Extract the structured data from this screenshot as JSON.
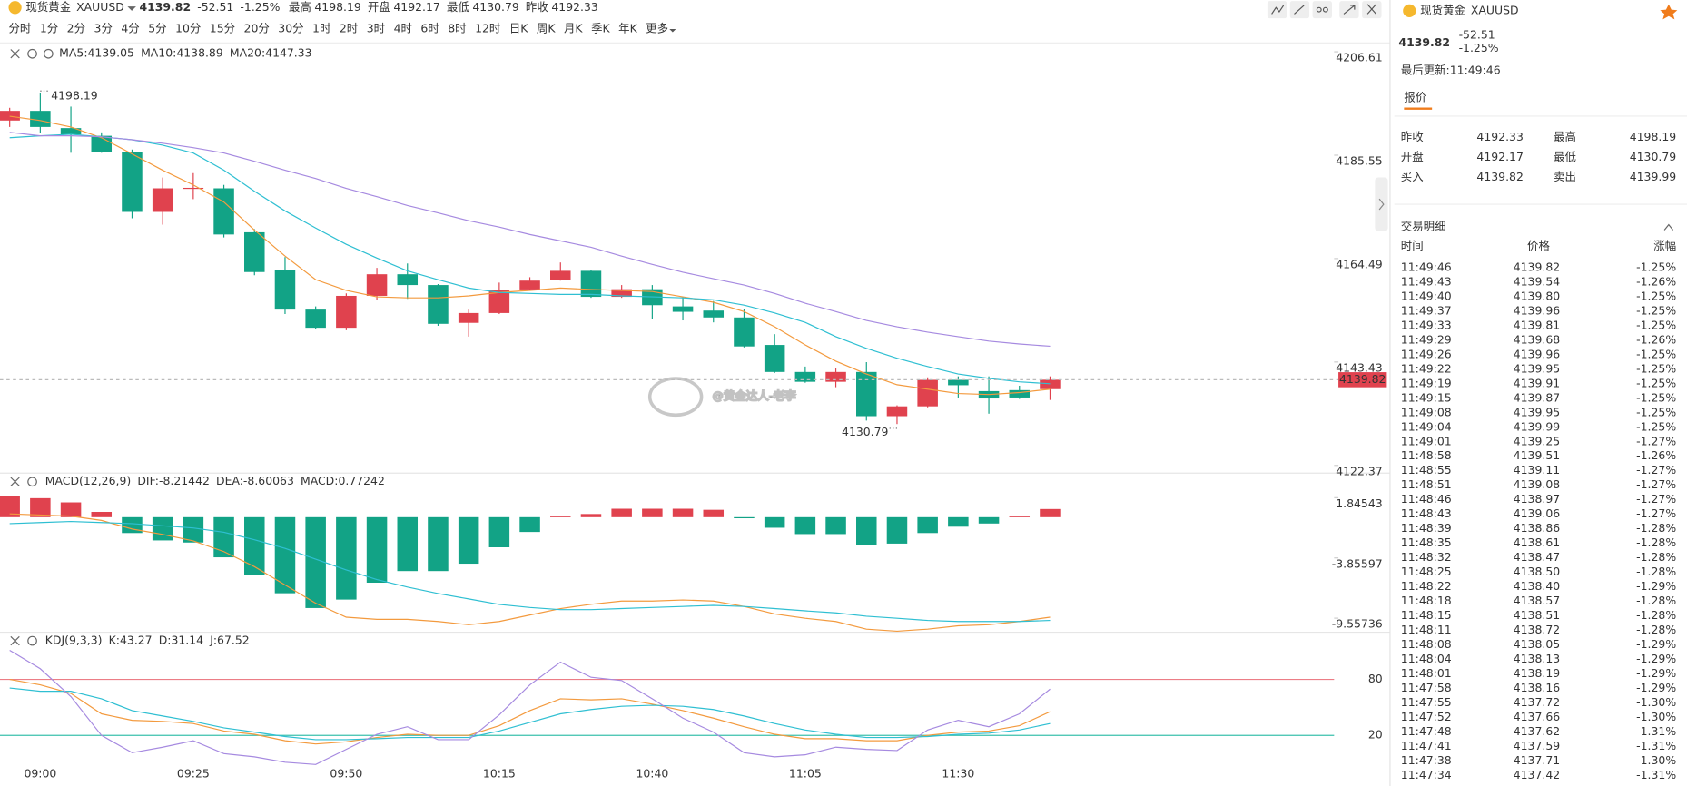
{
  "header": {
    "name": "现货黄金",
    "symbol": "XAUUSD",
    "price": "4139.82",
    "change": "-52.51",
    "change_pct": "-1.25%",
    "color": "#12a386",
    "stats": [
      {
        "label": "最高",
        "value": "4198.19",
        "color": "#e0424e"
      },
      {
        "label": "开盘",
        "value": "4192.17",
        "color": "#12a386"
      },
      {
        "label": "最低",
        "value": "4130.79",
        "color": "#12a386"
      },
      {
        "label": "昨收",
        "value": "4192.33",
        "color": "#666666"
      }
    ]
  },
  "toolbar": {
    "periods": [
      "分时",
      "1分",
      "2分",
      "3分",
      "4分",
      "5分",
      "10分",
      "15分",
      "20分",
      "30分",
      "1时",
      "2时",
      "3时",
      "4时",
      "6时",
      "8时",
      "12时",
      "日K",
      "周K",
      "月K",
      "季K",
      "年K",
      "更多"
    ],
    "active": "5分"
  },
  "watermark": "@黄金达人-老李",
  "chart_data": [
    {
      "type": "candlestick",
      "categories": [
        null,
        "09:00",
        null,
        null,
        null,
        null,
        "09:25",
        null,
        null,
        null,
        null,
        "09:50",
        null,
        null,
        null,
        null,
        "10:15",
        null,
        null,
        null,
        null,
        "10:40",
        null,
        null,
        null,
        null,
        "11:05",
        null,
        null,
        null,
        null,
        "11:30",
        null,
        null,
        null
      ],
      "open": [
        4192.61,
        4194.58,
        4191.07,
        4189.5,
        4186.26,
        4174.0,
        4178.8,
        4178.8,
        4169.85,
        4162.2,
        4154.1,
        4150.4,
        4156.9,
        4161.3,
        4159.1,
        4151.4,
        4153.4,
        4158.2,
        4160.2,
        4162.0,
        4156.7,
        4158.25,
        4154.75,
        4153.9,
        4152.5,
        4146.9,
        4141.4,
        4139.4,
        4141.4,
        4132.4,
        4134.4,
        4139.8,
        4137.5,
        4137.7,
        4137.9
      ],
      "high": [
        4195.2,
        4198.19,
        4195.45,
        4190.2,
        4186.7,
        4181.0,
        4181.9,
        4179.5,
        4170.5,
        4164.8,
        4154.75,
        4157.4,
        4162.6,
        4163.5,
        4159.3,
        4154.1,
        4159.6,
        4160.7,
        4163.7,
        4162.2,
        4159.1,
        4159.1,
        4156.7,
        4155.85,
        4154.3,
        4149.1,
        4142.5,
        4142.1,
        4143.4,
        4134.6,
        4140.3,
        4140.5,
        4140.5,
        4138.6,
        4140.5
      ],
      "low": [
        4191.3,
        4190.0,
        4186.04,
        4186.04,
        4172.7,
        4171.4,
        4176.6,
        4168.8,
        4161.1,
        4153.2,
        4150.15,
        4149.9,
        4156.0,
        4156.3,
        4150.8,
        4148.6,
        4153.2,
        4158.0,
        4160.0,
        4156.5,
        4156.5,
        4152.1,
        4151.9,
        4151.5,
        4146.4,
        4141.2,
        4139.2,
        4138.3,
        4131.5,
        4130.79,
        4134.2,
        4136.2,
        4132.9,
        4135.9,
        4135.7
      ],
      "close": [
        4194.58,
        4191.3,
        4189.76,
        4186.26,
        4174.0,
        4178.8,
        4178.9,
        4169.4,
        4161.75,
        4154.1,
        4150.4,
        4156.9,
        4161.3,
        4159.1,
        4151.2,
        4153.4,
        4158.0,
        4160.0,
        4162.0,
        4156.7,
        4158.25,
        4155.0,
        4153.65,
        4152.5,
        4146.6,
        4141.4,
        4139.4,
        4141.4,
        4132.4,
        4134.4,
        4139.8,
        4138.7,
        4136.0,
        4136.2,
        4139.82
      ],
      "up_color": "#e0424e",
      "down_color": "#12a386",
      "series": [
        {
          "name": "MA5:4139.05",
          "color": "#f39a3e",
          "values": [
            4193.48,
            4192.6,
            4191.3,
            4189.1,
            4185.8,
            4182.5,
            4179.5,
            4176.0,
            4170.3,
            4165.0,
            4160.2,
            4158.0,
            4156.7,
            4156.5,
            4156.5,
            4156.9,
            4157.6,
            4158.0,
            4158.5,
            4158.2,
            4158.0,
            4157.8,
            4156.7,
            4155.6,
            4153.7,
            4150.6,
            4146.9,
            4143.6,
            4141.0,
            4138.8,
            4137.9,
            4137.0,
            4136.8,
            4137.2,
            4137.9
          ]
        },
        {
          "name": "MA10:4138.89",
          "color": "#2fbfd2",
          "values": [
            4189.1,
            4189.5,
            4189.8,
            4189.3,
            4188.7,
            4187.6,
            4186.0,
            4182.5,
            4178.2,
            4174.2,
            4170.7,
            4167.4,
            4164.6,
            4162.0,
            4160.2,
            4158.5,
            4157.6,
            4157.4,
            4157.2,
            4157.2,
            4156.9,
            4156.7,
            4156.5,
            4156.1,
            4155.0,
            4153.4,
            4151.5,
            4148.6,
            4146.2,
            4144.2,
            4142.5,
            4141.0,
            4140.1,
            4139.4,
            4139.0
          ]
        },
        {
          "name": "MA20:4147.33",
          "color": "#a68ae0",
          "values": [
            4190.2,
            4189.5,
            4189.5,
            4189.3,
            4188.7,
            4188.0,
            4187.1,
            4186.0,
            4184.3,
            4182.5,
            4180.8,
            4178.8,
            4177.1,
            4175.3,
            4173.8,
            4172.2,
            4170.9,
            4169.4,
            4168.1,
            4166.8,
            4165.0,
            4163.3,
            4161.7,
            4160.4,
            4159.1,
            4157.4,
            4155.4,
            4153.7,
            4151.9,
            4150.6,
            4149.5,
            4148.6,
            4147.7,
            4147.1,
            4146.65
          ]
        }
      ],
      "annotations": [
        "4198.19",
        "4130.79"
      ],
      "last_price": {
        "value": 4139.82,
        "label": "4139.82"
      },
      "last_color": "#e0424e",
      "ylim": [
        4120.8,
        4208.4
      ],
      "yticks": [
        4206.61,
        4185.55,
        4164.49,
        4143.43,
        4122.37
      ]
    },
    {
      "type": "macd",
      "title": "MACD(12,26,9)",
      "up_color": "#e0424e",
      "down_color": "#12a386",
      "series": [
        {
          "name": "DIF:-8.21442",
          "color": "#f39a3e",
          "values": [
            0.31,
            0.2,
            0.1,
            -0.31,
            -1.12,
            -1.63,
            -2.24,
            -3.26,
            -4.68,
            -6.41,
            -8.14,
            -9.47,
            -9.67,
            -9.67,
            -9.87,
            -10.18,
            -9.87,
            -9.26,
            -8.65,
            -8.24,
            -7.94,
            -7.94,
            -7.84,
            -7.94,
            -8.45,
            -9.16,
            -9.57,
            -9.87,
            -10.59,
            -10.79,
            -10.59,
            -10.28,
            -10.18,
            -9.87,
            -9.47
          ]
        },
        {
          "name": "DEA:-8.60063",
          "color": "#2fbfd2",
          "values": [
            -0.61,
            -0.51,
            -0.41,
            -0.51,
            -0.61,
            -0.81,
            -1.02,
            -1.43,
            -2.14,
            -2.95,
            -3.97,
            -4.99,
            -5.9,
            -6.62,
            -7.23,
            -7.74,
            -8.25,
            -8.55,
            -8.75,
            -8.75,
            -8.65,
            -8.55,
            -8.45,
            -8.35,
            -8.45,
            -8.65,
            -8.86,
            -9.06,
            -9.37,
            -9.57,
            -9.77,
            -9.87,
            -9.87,
            -9.87,
            -9.77
          ]
        },
        {
          "name": "MACD:0.77242",
          "color": "#a68ae0",
          "values": [
            2.0,
            1.8,
            1.4,
            0.5,
            -1.5,
            -2.2,
            -2.4,
            -3.8,
            -5.5,
            -7.2,
            -8.6,
            -7.8,
            -6.2,
            -5.1,
            -5.1,
            -4.4,
            -2.85,
            -1.4,
            0.1,
            0.3,
            0.8,
            0.8,
            0.8,
            0.7,
            -0.1,
            -1.0,
            -1.6,
            -1.6,
            -2.6,
            -2.5,
            -1.5,
            -0.9,
            -0.6,
            0.1,
            0.77242
          ]
        }
      ],
      "ylim": [
        -10.89,
        2.34
      ],
      "yticks": [
        1.84543,
        -3.85597,
        -9.55736
      ]
    },
    {
      "type": "line",
      "title": "KDJ(9,3,3)",
      "series": [
        {
          "name": "K:43.27",
          "color": "#f39a3e",
          "values": [
            80,
            74.2,
            65,
            43.1,
            36.2,
            35,
            32.7,
            24.6,
            21.2,
            14.2,
            10.8,
            13.1,
            17.7,
            21.2,
            20,
            20,
            30.4,
            46.5,
            59.2,
            58.1,
            59.2,
            53.5,
            46.5,
            38.5,
            29.2,
            21.2,
            16.5,
            16.5,
            14.2,
            14.2,
            20,
            23.5,
            24.6,
            30.4,
            45.4
          ]
        },
        {
          "name": "D:31.14",
          "color": "#2fbfd2",
          "values": [
            70.8,
            67.3,
            67.3,
            59.2,
            46.5,
            40.8,
            35,
            28.1,
            23.5,
            18.8,
            15.4,
            15.4,
            16.5,
            17.7,
            17.7,
            17.7,
            24.6,
            33.8,
            43.1,
            47.7,
            51.2,
            52.3,
            51.2,
            47.7,
            40.8,
            32.7,
            25.8,
            21.2,
            17.7,
            17.7,
            18.8,
            21.2,
            22.3,
            25.8,
            32.7
          ]
        },
        {
          "name": "J:67.52",
          "color": "#a68ae0",
          "values": [
            111.2,
            91.5,
            61.5,
            20,
            1.5,
            7.3,
            14.2,
            0.4,
            -3.1,
            -8.8,
            -11.2,
            5,
            21.2,
            29.2,
            15.4,
            15.4,
            41.9,
            74.2,
            98.5,
            82.3,
            78.8,
            59.2,
            38.5,
            23.5,
            1.5,
            -3.1,
            -0.8,
            7.3,
            5,
            3.8,
            25.8,
            36.2,
            29.2,
            43.1,
            69.6
          ]
        }
      ],
      "ylim": [
        -17,
        126
      ],
      "yticks": [
        80,
        20
      ],
      "tick_line_colors": [
        "#ec7d86",
        "#3cc0ad"
      ]
    }
  ],
  "side": {
    "name": "现货黄金",
    "symbol": "XAUUSD",
    "price": "4139.82",
    "change": "-52.51",
    "change_pct": "-1.25%",
    "color": "#12a386",
    "updated": "最后更新:11:49:46",
    "tab": "报价",
    "quotes": [
      {
        "label": "昨收",
        "value": "4192.33",
        "color": "#333333"
      },
      {
        "label": "最高",
        "value": "4198.19",
        "color": "#e0424e"
      },
      {
        "label": "开盘",
        "value": "4192.17",
        "color": "#12a386"
      },
      {
        "label": "最低",
        "value": "4130.79",
        "color": "#12a386"
      },
      {
        "label": "买入",
        "value": "4139.82",
        "color": "#333333"
      },
      {
        "label": "卖出",
        "value": "4139.99",
        "color": "#333333"
      }
    ],
    "trades_title": "交易明细",
    "columns": [
      "时间",
      "价格",
      "涨幅"
    ],
    "trades": [
      [
        "11:49:46",
        "4139.82",
        "-1.25%"
      ],
      [
        "11:49:43",
        "4139.54",
        "-1.26%"
      ],
      [
        "11:49:40",
        "4139.80",
        "-1.25%"
      ],
      [
        "11:49:37",
        "4139.96",
        "-1.25%"
      ],
      [
        "11:49:33",
        "4139.81",
        "-1.25%"
      ],
      [
        "11:49:29",
        "4139.68",
        "-1.26%"
      ],
      [
        "11:49:26",
        "4139.96",
        "-1.25%"
      ],
      [
        "11:49:22",
        "4139.95",
        "-1.25%"
      ],
      [
        "11:49:19",
        "4139.91",
        "-1.25%"
      ],
      [
        "11:49:15",
        "4139.87",
        "-1.25%"
      ],
      [
        "11:49:08",
        "4139.95",
        "-1.25%"
      ],
      [
        "11:49:04",
        "4139.99",
        "-1.25%"
      ],
      [
        "11:49:01",
        "4139.25",
        "-1.27%"
      ],
      [
        "11:48:58",
        "4139.51",
        "-1.26%"
      ],
      [
        "11:48:55",
        "4139.11",
        "-1.27%"
      ],
      [
        "11:48:51",
        "4139.08",
        "-1.27%"
      ],
      [
        "11:48:46",
        "4138.97",
        "-1.27%"
      ],
      [
        "11:48:43",
        "4139.06",
        "-1.27%"
      ],
      [
        "11:48:39",
        "4138.86",
        "-1.28%"
      ],
      [
        "11:48:35",
        "4138.61",
        "-1.28%"
      ],
      [
        "11:48:32",
        "4138.47",
        "-1.28%"
      ],
      [
        "11:48:25",
        "4138.50",
        "-1.28%"
      ],
      [
        "11:48:22",
        "4138.40",
        "-1.29%"
      ],
      [
        "11:48:18",
        "4138.57",
        "-1.28%"
      ],
      [
        "11:48:15",
        "4138.51",
        "-1.28%"
      ],
      [
        "11:48:11",
        "4138.72",
        "-1.28%"
      ],
      [
        "11:48:08",
        "4138.05",
        "-1.29%"
      ],
      [
        "11:48:04",
        "4138.13",
        "-1.29%"
      ],
      [
        "11:48:01",
        "4138.19",
        "-1.29%"
      ],
      [
        "11:47:58",
        "4138.16",
        "-1.29%"
      ],
      [
        "11:47:55",
        "4137.72",
        "-1.30%"
      ],
      [
        "11:47:52",
        "4137.66",
        "-1.30%"
      ],
      [
        "11:47:48",
        "4137.62",
        "-1.31%"
      ],
      [
        "11:47:41",
        "4137.59",
        "-1.31%"
      ],
      [
        "11:47:38",
        "4137.71",
        "-1.30%"
      ],
      [
        "11:47:34",
        "4137.42",
        "-1.31%"
      ]
    ]
  }
}
